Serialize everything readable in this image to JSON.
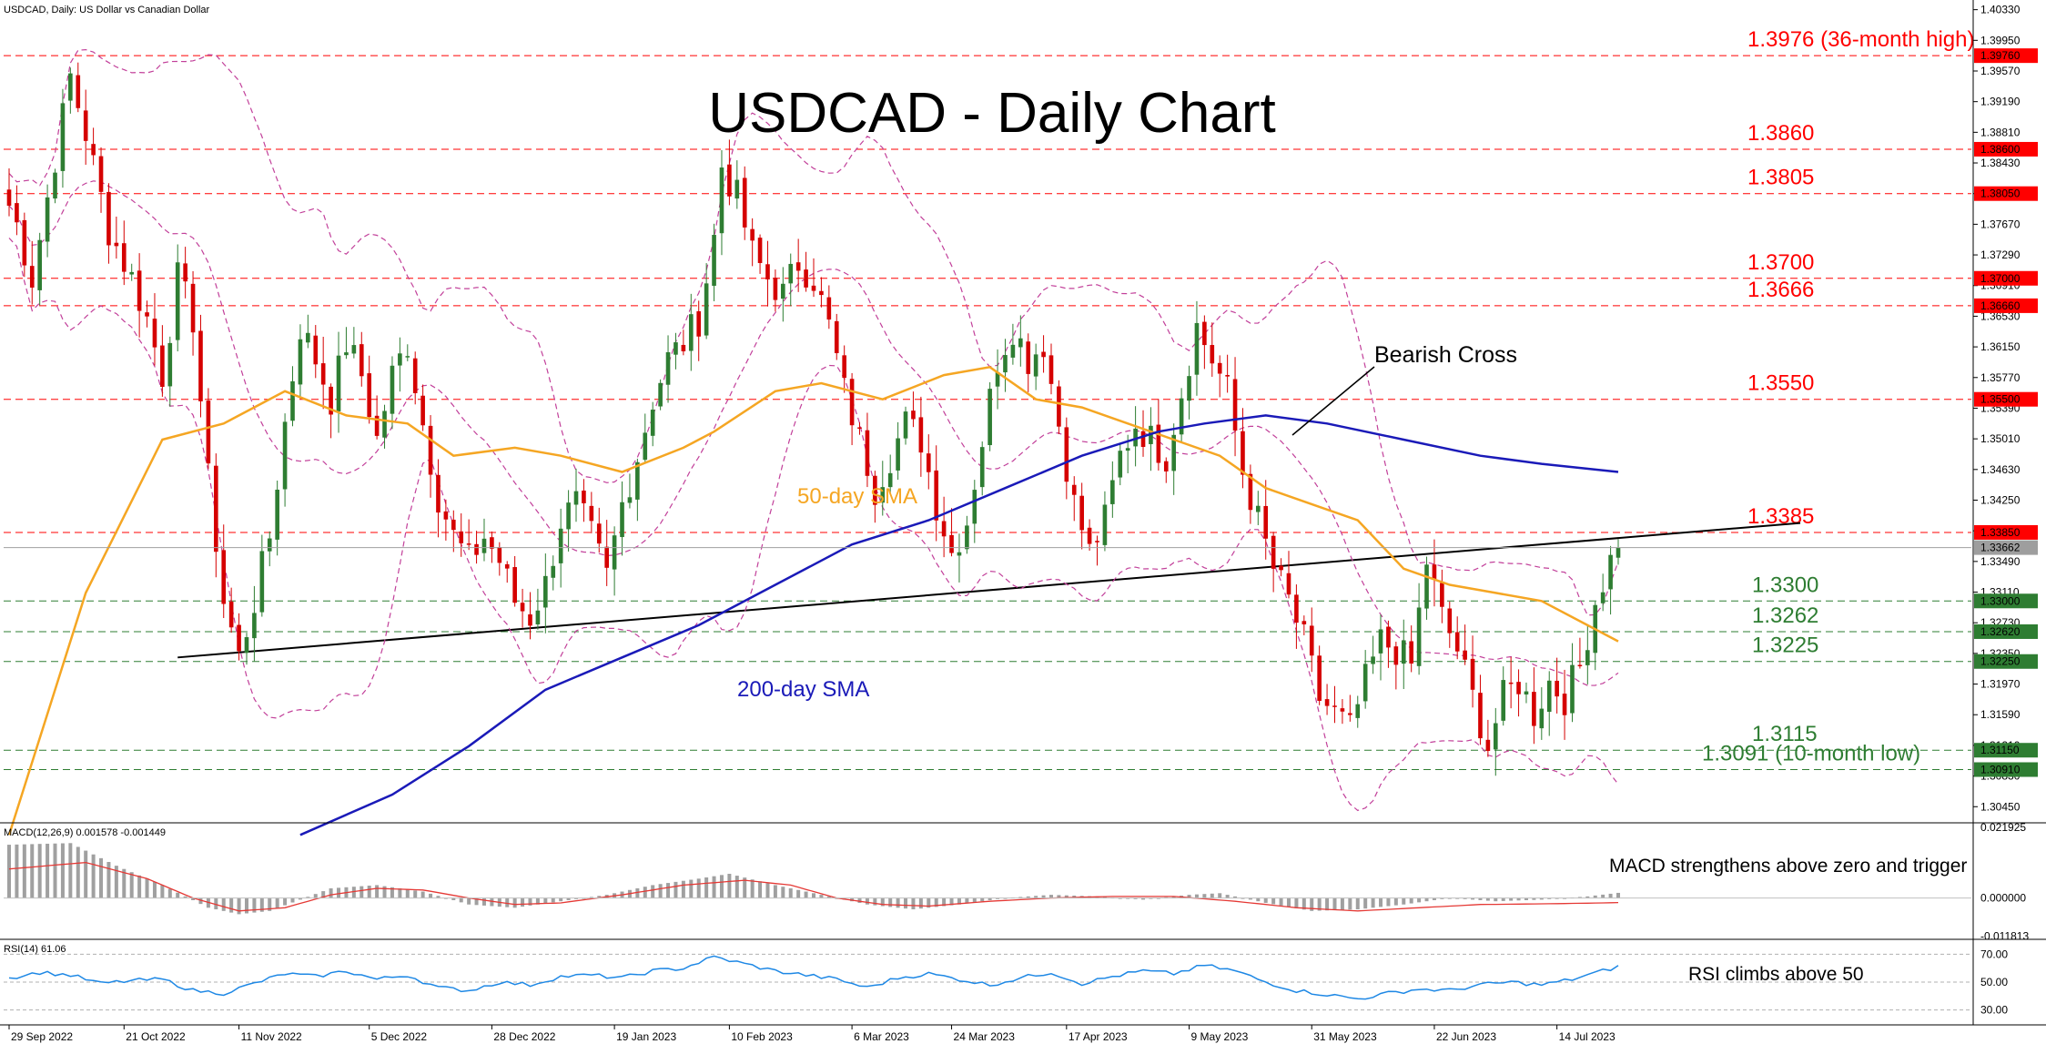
{
  "header": {
    "symbol_info": "USDCAD, Daily:  US Dollar vs Canadian Dollar",
    "macd_info": "MACD(12,26,9) 0.001578 -0.001449",
    "rsi_info": "RSI(14) 61.06"
  },
  "colors": {
    "bull": "#2e7d32",
    "bear": "#d50000",
    "sma50": "#f5a623",
    "sma200": "#1a1ab8",
    "bollinger": "#c2409a",
    "resistance": "#ff0000",
    "support": "#2e7d32",
    "trendline": "#000000",
    "macd_hist": "#a0a0a0",
    "macd_signal": "#e53935",
    "rsi_line": "#1e88e5"
  },
  "chart_data": [
    {
      "type": "candlestick",
      "title": "USDCAD - Daily Chart",
      "ylim": [
        1.3025,
        1.4045
      ],
      "y_ticks": [
        "1.40330",
        "1.39950",
        "1.39570",
        "1.39190",
        "1.38810",
        "1.38430",
        "1.38050",
        "1.37670",
        "1.37290",
        "1.36910",
        "1.36530",
        "1.36150",
        "1.35770",
        "1.35390",
        "1.35010",
        "1.34630",
        "1.34250",
        "1.33870",
        "1.33490",
        "1.33110",
        "1.32730",
        "1.32350",
        "1.31970",
        "1.31590",
        "1.31210",
        "1.30830",
        "1.30450"
      ],
      "x_labels": [
        "29 Sep 2022",
        "21 Oct 2022",
        "11 Nov 2022",
        "5 Dec 2022",
        "28 Dec 2022",
        "19 Jan 2023",
        "10 Feb 2023",
        "6 Mar 2023",
        "24 Mar 2023",
        "17 Apr 2023",
        "9 May 2023",
        "31 May 2023",
        "22 Jun 2023",
        "14 Jul 2023"
      ],
      "current_price": "1.33662",
      "levels": [
        {
          "value": 1.3976,
          "tag": "1.39760",
          "label": "1.3976 (36-month high)",
          "kind": "resistance"
        },
        {
          "value": 1.386,
          "tag": "1.38600",
          "label": "1.3860",
          "kind": "resistance"
        },
        {
          "value": 1.3805,
          "tag": "1.38050",
          "label": "1.3805",
          "kind": "resistance"
        },
        {
          "value": 1.37,
          "tag": "1.37000",
          "label": "1.3700",
          "kind": "resistance"
        },
        {
          "value": 1.3666,
          "tag": "1.36660",
          "label": "1.3666",
          "kind": "resistance"
        },
        {
          "value": 1.355,
          "tag": "1.35500",
          "label": "1.3550",
          "kind": "resistance"
        },
        {
          "value": 1.3385,
          "tag": "1.33850",
          "label": "1.3385",
          "kind": "resistance"
        },
        {
          "value": 1.33,
          "tag": "1.33000",
          "label": "1.3300",
          "kind": "support"
        },
        {
          "value": 1.3262,
          "tag": "1.32620",
          "label": "1.3262",
          "kind": "support"
        },
        {
          "value": 1.3225,
          "tag": "1.32250",
          "label": "1.3225",
          "kind": "support"
        },
        {
          "value": 1.3115,
          "tag": "1.31150",
          "label": "1.3115",
          "kind": "support"
        },
        {
          "value": 1.3091,
          "tag": "1.30910",
          "label": "1.3091 (10-month low)",
          "kind": "support"
        }
      ],
      "anchors": [
        [
          0,
          1.38
        ],
        [
          3,
          1.37
        ],
        [
          6,
          1.385
        ],
        [
          8,
          1.395
        ],
        [
          10,
          1.388
        ],
        [
          13,
          1.376
        ],
        [
          16,
          1.37
        ],
        [
          18,
          1.365
        ],
        [
          20,
          1.358
        ],
        [
          22,
          1.37
        ],
        [
          24,
          1.365
        ],
        [
          26,
          1.345
        ],
        [
          28,
          1.33
        ],
        [
          30,
          1.323
        ],
        [
          32,
          1.33
        ],
        [
          34,
          1.338
        ],
        [
          36,
          1.352
        ],
        [
          38,
          1.364
        ],
        [
          40,
          1.36
        ],
        [
          42,
          1.355
        ],
        [
          44,
          1.362
        ],
        [
          46,
          1.358
        ],
        [
          48,
          1.35
        ],
        [
          50,
          1.358
        ],
        [
          52,
          1.362
        ],
        [
          54,
          1.352
        ],
        [
          56,
          1.343
        ],
        [
          58,
          1.338
        ],
        [
          60,
          1.335
        ],
        [
          62,
          1.338
        ],
        [
          64,
          1.335
        ],
        [
          66,
          1.33
        ],
        [
          68,
          1.328
        ],
        [
          70,
          1.332
        ],
        [
          72,
          1.34
        ],
        [
          74,
          1.342
        ],
        [
          76,
          1.338
        ],
        [
          78,
          1.333
        ],
        [
          80,
          1.342
        ],
        [
          82,
          1.348
        ],
        [
          84,
          1.355
        ],
        [
          86,
          1.36
        ],
        [
          88,
          1.362
        ],
        [
          90,
          1.365
        ],
        [
          92,
          1.375
        ],
        [
          93,
          1.384
        ],
        [
          95,
          1.38
        ],
        [
          97,
          1.373
        ],
        [
          99,
          1.37
        ],
        [
          101,
          1.368
        ],
        [
          103,
          1.372
        ],
        [
          105,
          1.37
        ],
        [
          107,
          1.364
        ],
        [
          109,
          1.356
        ],
        [
          111,
          1.35
        ],
        [
          113,
          1.344
        ],
        [
          115,
          1.348
        ],
        [
          117,
          1.352
        ],
        [
          119,
          1.35
        ],
        [
          121,
          1.342
        ],
        [
          123,
          1.336
        ],
        [
          125,
          1.34
        ],
        [
          127,
          1.35
        ],
        [
          129,
          1.36
        ],
        [
          131,
          1.364
        ],
        [
          133,
          1.36
        ],
        [
          135,
          1.362
        ],
        [
          137,
          1.352
        ],
        [
          139,
          1.342
        ],
        [
          141,
          1.336
        ],
        [
          143,
          1.34
        ],
        [
          145,
          1.348
        ],
        [
          147,
          1.352
        ],
        [
          149,
          1.35
        ],
        [
          151,
          1.348
        ],
        [
          153,
          1.356
        ],
        [
          155,
          1.364
        ],
        [
          157,
          1.36
        ],
        [
          159,
          1.356
        ],
        [
          161,
          1.346
        ],
        [
          163,
          1.34
        ],
        [
          165,
          1.334
        ],
        [
          167,
          1.33
        ],
        [
          169,
          1.325
        ],
        [
          171,
          1.318
        ],
        [
          173,
          1.316
        ],
        [
          175,
          1.314
        ],
        [
          177,
          1.32
        ],
        [
          179,
          1.325
        ],
        [
          181,
          1.324
        ],
        [
          183,
          1.322
        ],
        [
          185,
          1.335
        ],
        [
          187,
          1.328
        ],
        [
          189,
          1.324
        ],
        [
          191,
          1.318
        ],
        [
          193,
          1.312
        ],
        [
          195,
          1.318
        ],
        [
          197,
          1.32
        ],
        [
          199,
          1.316
        ],
        [
          201,
          1.32
        ],
        [
          203,
          1.318
        ],
        [
          205,
          1.322
        ],
        [
          207,
          1.33
        ],
        [
          209,
          1.335
        ],
        [
          210,
          1.3366
        ]
      ],
      "sma50": [
        [
          0,
          1.301
        ],
        [
          10,
          1.331
        ],
        [
          20,
          1.35
        ],
        [
          28,
          1.352
        ],
        [
          36,
          1.356
        ],
        [
          44,
          1.353
        ],
        [
          52,
          1.352
        ],
        [
          58,
          1.348
        ],
        [
          66,
          1.349
        ],
        [
          72,
          1.348
        ],
        [
          80,
          1.346
        ],
        [
          88,
          1.349
        ],
        [
          92,
          1.351
        ],
        [
          100,
          1.356
        ],
        [
          106,
          1.357
        ],
        [
          114,
          1.355
        ],
        [
          122,
          1.358
        ],
        [
          128,
          1.359
        ],
        [
          134,
          1.355
        ],
        [
          140,
          1.354
        ],
        [
          146,
          1.352
        ],
        [
          152,
          1.35
        ],
        [
          158,
          1.348
        ],
        [
          164,
          1.344
        ],
        [
          170,
          1.342
        ],
        [
          176,
          1.34
        ],
        [
          182,
          1.334
        ],
        [
          188,
          1.332
        ],
        [
          194,
          1.331
        ],
        [
          200,
          1.33
        ],
        [
          206,
          1.327
        ],
        [
          210,
          1.325
        ]
      ],
      "sma200": [
        [
          38,
          1.301
        ],
        [
          50,
          1.306
        ],
        [
          60,
          1.312
        ],
        [
          70,
          1.319
        ],
        [
          80,
          1.323
        ],
        [
          90,
          1.327
        ],
        [
          100,
          1.332
        ],
        [
          110,
          1.337
        ],
        [
          120,
          1.34
        ],
        [
          130,
          1.344
        ],
        [
          140,
          1.348
        ],
        [
          150,
          1.351
        ],
        [
          156,
          1.352
        ],
        [
          164,
          1.353
        ],
        [
          172,
          1.352
        ],
        [
          182,
          1.35
        ],
        [
          192,
          1.348
        ],
        [
          200,
          1.347
        ],
        [
          210,
          1.346
        ]
      ],
      "trendline": [
        [
          22,
          1.323
        ],
        [
          210,
          1.3378
        ]
      ],
      "macd_ylim": [
        -0.0125,
        0.023
      ],
      "macd_ticks": [
        "0.021925",
        "0.000000",
        "-0.011813"
      ],
      "macd_hist_anchors": [
        [
          0,
          0.0165
        ],
        [
          8,
          0.017
        ],
        [
          14,
          0.01
        ],
        [
          20,
          0.004
        ],
        [
          26,
          -0.003
        ],
        [
          30,
          -0.005
        ],
        [
          34,
          -0.004
        ],
        [
          38,
          -0.0005
        ],
        [
          42,
          0.003
        ],
        [
          48,
          0.004
        ],
        [
          54,
          0.002
        ],
        [
          60,
          -0.002
        ],
        [
          66,
          -0.003
        ],
        [
          72,
          -0.001
        ],
        [
          78,
          0.001
        ],
        [
          84,
          0.004
        ],
        [
          90,
          0.006
        ],
        [
          94,
          0.0075
        ],
        [
          100,
          0.004
        ],
        [
          106,
          0.001
        ],
        [
          112,
          -0.002
        ],
        [
          118,
          -0.0035
        ],
        [
          124,
          -0.002
        ],
        [
          130,
          0.0
        ],
        [
          136,
          0.001
        ],
        [
          142,
          0.0005
        ],
        [
          148,
          -0.0005
        ],
        [
          154,
          0.001
        ],
        [
          158,
          0.0015
        ],
        [
          164,
          -0.0015
        ],
        [
          170,
          -0.004
        ],
        [
          176,
          -0.0035
        ],
        [
          182,
          -0.002
        ],
        [
          188,
          0.0
        ],
        [
          194,
          -0.001
        ],
        [
          200,
          -0.0005
        ],
        [
          206,
          0.0005
        ],
        [
          210,
          0.0016
        ]
      ],
      "macd_signal_anchors": [
        [
          0,
          0.009
        ],
        [
          10,
          0.011
        ],
        [
          18,
          0.006
        ],
        [
          24,
          0.0
        ],
        [
          30,
          -0.004
        ],
        [
          36,
          -0.003
        ],
        [
          42,
          0.001
        ],
        [
          48,
          0.003
        ],
        [
          54,
          0.0025
        ],
        [
          60,
          0.0
        ],
        [
          66,
          -0.002
        ],
        [
          72,
          -0.0015
        ],
        [
          80,
          0.001
        ],
        [
          88,
          0.004
        ],
        [
          96,
          0.0055
        ],
        [
          102,
          0.004
        ],
        [
          108,
          0.0
        ],
        [
          114,
          -0.002
        ],
        [
          120,
          -0.0025
        ],
        [
          128,
          -0.001
        ],
        [
          136,
          0.0
        ],
        [
          144,
          0.0005
        ],
        [
          152,
          0.0005
        ],
        [
          160,
          -0.001
        ],
        [
          168,
          -0.003
        ],
        [
          176,
          -0.004
        ],
        [
          184,
          -0.003
        ],
        [
          192,
          -0.002
        ],
        [
          200,
          -0.0018
        ],
        [
          206,
          -0.0016
        ],
        [
          210,
          -0.0014
        ]
      ],
      "rsi_ylim": [
        20,
        80
      ],
      "rsi_ticks": [
        "70.00",
        "50.00",
        "30.00"
      ],
      "rsi_anchors": [
        [
          0,
          53
        ],
        [
          4,
          57
        ],
        [
          8,
          55
        ],
        [
          12,
          49
        ],
        [
          16,
          51
        ],
        [
          20,
          52
        ],
        [
          24,
          44
        ],
        [
          28,
          42
        ],
        [
          32,
          49
        ],
        [
          36,
          56
        ],
        [
          40,
          54
        ],
        [
          44,
          58
        ],
        [
          48,
          52
        ],
        [
          52,
          55
        ],
        [
          56,
          46
        ],
        [
          60,
          44
        ],
        [
          64,
          50
        ],
        [
          68,
          48
        ],
        [
          72,
          54
        ],
        [
          76,
          55
        ],
        [
          80,
          53
        ],
        [
          84,
          58
        ],
        [
          88,
          60
        ],
        [
          92,
          68
        ],
        [
          96,
          63
        ],
        [
          100,
          58
        ],
        [
          104,
          55
        ],
        [
          108,
          52
        ],
        [
          112,
          46
        ],
        [
          116,
          53
        ],
        [
          120,
          56
        ],
        [
          124,
          52
        ],
        [
          128,
          48
        ],
        [
          132,
          53
        ],
        [
          136,
          57
        ],
        [
          140,
          49
        ],
        [
          144,
          54
        ],
        [
          148,
          58
        ],
        [
          152,
          56
        ],
        [
          156,
          62
        ],
        [
          160,
          58
        ],
        [
          164,
          50
        ],
        [
          168,
          44
        ],
        [
          172,
          41
        ],
        [
          176,
          38
        ],
        [
          180,
          42
        ],
        [
          184,
          45
        ],
        [
          188,
          44
        ],
        [
          192,
          48
        ],
        [
          196,
          50
        ],
        [
          200,
          48
        ],
        [
          204,
          52
        ],
        [
          208,
          58
        ],
        [
          210,
          61
        ]
      ],
      "annotations": {
        "chart_title": "USDCAD - Daily Chart",
        "bearish_cross": "Bearish Cross",
        "sma50_label": "50-day SMA",
        "sma200_label": "200-day SMA",
        "macd_comment": "MACD strengthens above zero and trigger",
        "rsi_comment": "RSI climbs above 50"
      }
    }
  ]
}
